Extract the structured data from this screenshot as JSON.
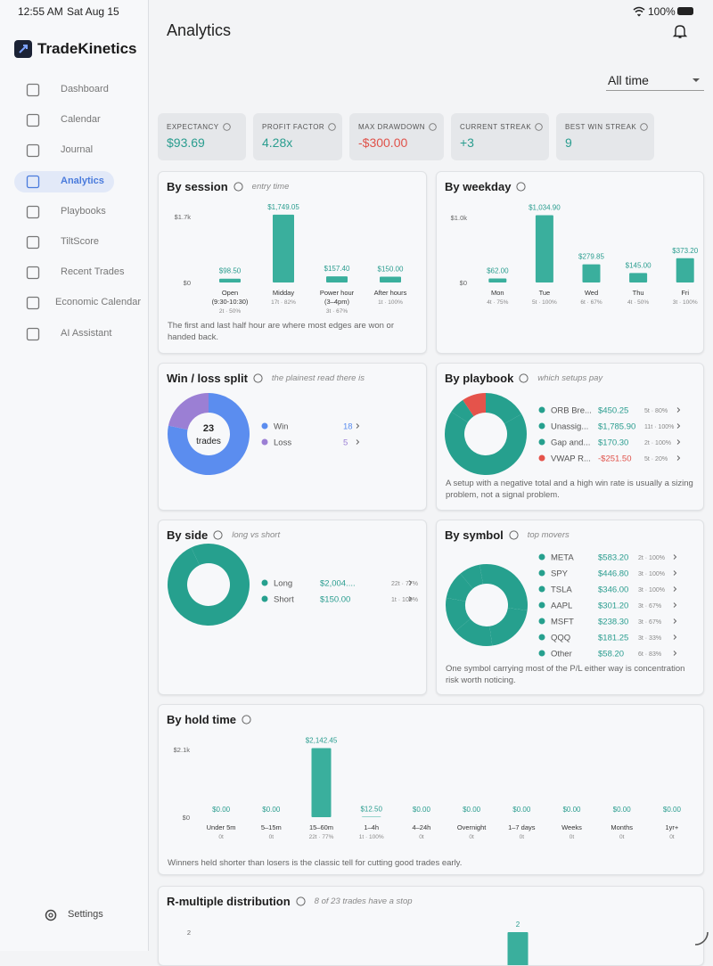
{
  "status_bar": {
    "time": "12:55 AM",
    "date": "Sat Aug 15",
    "battery": "100%"
  },
  "sidebar": {
    "brand": "TradeKinetics",
    "nav": [
      "Dashboard",
      "Calendar",
      "Journal",
      "Analytics",
      "Playbooks",
      "TiltScore",
      "Recent Trades",
      "Economic Calendar",
      "AI Assistant"
    ],
    "active": 3,
    "settings": "Settings"
  },
  "header": {
    "title": "Analytics",
    "range": "All time"
  },
  "stats": [
    {
      "label": "EXPECTANCY",
      "value": "$93.69",
      "color": "#2a9d8f"
    },
    {
      "label": "PROFIT FACTOR",
      "value": "4.28x",
      "color": "#2a9d8f"
    },
    {
      "label": "MAX DRAWDOWN",
      "value": "-$300.00",
      "color": "#e0524a"
    },
    {
      "label": "CURRENT STREAK",
      "value": "+3",
      "color": "#2a9d8f"
    },
    {
      "label": "BEST WIN STREAK",
      "value": "9",
      "color": "#2a9d8f"
    }
  ],
  "by_session": {
    "type": "bar",
    "title": "By session",
    "subtitle": "entry time",
    "ylim": [
      0,
      1700
    ],
    "yticks": [
      {
        "value": 0,
        "label": "$0"
      },
      {
        "value": 1700,
        "label": "$1.7k"
      }
    ],
    "categories": [
      [
        "Open",
        "(9:30-10:30)"
      ],
      [
        "Midday"
      ],
      [
        "Power hour",
        "(3–4pm)"
      ],
      [
        "After hours"
      ]
    ],
    "values": [
      98.5,
      1749.05,
      157.4,
      150
    ],
    "value_labels": [
      "$98.50",
      "$1,749.05",
      "$157.40",
      "$150.00"
    ],
    "meta": [
      "2t · 50%",
      "17t · 82%",
      "3t · 67%",
      "1t · 100%"
    ],
    "color": "#3aaf9d",
    "note": "The first and last half hour are where most edges are won or handed back."
  },
  "by_weekday": {
    "type": "bar",
    "title": "By weekday",
    "ylim": [
      0,
      1000
    ],
    "yticks": [
      {
        "value": 0,
        "label": "$0"
      },
      {
        "value": 1000,
        "label": "$1.0k"
      }
    ],
    "categories": [
      [
        "Mon"
      ],
      [
        "Tue"
      ],
      [
        "Wed"
      ],
      [
        "Thu"
      ],
      [
        "Fri"
      ]
    ],
    "values": [
      62,
      1034.9,
      279.85,
      145,
      373.2
    ],
    "value_labels": [
      "$62.00",
      "$1,034.90",
      "$279.85",
      "$145.00",
      "$373.20"
    ],
    "meta": [
      "4t · 75%",
      "5t · 100%",
      "6t · 67%",
      "4t · 50%",
      "3t · 100%"
    ],
    "color": "#3aaf9d"
  },
  "win_loss": {
    "type": "donut",
    "title": "Win / loss split",
    "subtitle": "the plainest read there is",
    "center_value": "23",
    "center_label": "trades",
    "series": [
      {
        "name": "Win",
        "value": 18,
        "color": "#5b8def"
      },
      {
        "name": "Loss",
        "value": 5,
        "color": "#9b7fd4"
      }
    ]
  },
  "by_playbook": {
    "type": "donut",
    "title": "By playbook",
    "subtitle": "which setups pay",
    "series": [
      {
        "name": "ORB Bre...",
        "value": 450.25,
        "value_label": "$450.25",
        "meta": "5t · 80%",
        "color": "#26a08e"
      },
      {
        "name": "Unassig...",
        "value": 1785.9,
        "value_label": "$1,785.90",
        "meta": "11t · 100%",
        "color": "#26a08e"
      },
      {
        "name": "Gap and...",
        "value": 170.3,
        "value_label": "$170.30",
        "meta": "2t · 100%",
        "color": "#26a08e"
      },
      {
        "name": "VWAP R...",
        "value": -251.5,
        "value_label": "-$251.50",
        "meta": "5t · 20%",
        "color": "#e5534b"
      }
    ],
    "note": "A setup with a negative total and a high win rate is usually a sizing problem, not a signal problem."
  },
  "by_side": {
    "type": "donut",
    "title": "By side",
    "subtitle": "long vs short",
    "series": [
      {
        "name": "Long",
        "value": 2004.95,
        "value_label": "$2,004....",
        "meta": "22t · 77%",
        "color": "#26a08e"
      },
      {
        "name": "Short",
        "value": 150,
        "value_label": "$150.00",
        "meta": "1t · 100%",
        "color": "#26a08e"
      }
    ]
  },
  "by_symbol": {
    "type": "donut",
    "title": "By symbol",
    "subtitle": "top movers",
    "series": [
      {
        "name": "META",
        "value": 583.2,
        "value_label": "$583.20",
        "meta": "2t · 100%",
        "color": "#26a08e"
      },
      {
        "name": "SPY",
        "value": 446.8,
        "value_label": "$446.80",
        "meta": "3t · 100%",
        "color": "#26a08e"
      },
      {
        "name": "TSLA",
        "value": 346,
        "value_label": "$346.00",
        "meta": "3t · 100%",
        "color": "#26a08e"
      },
      {
        "name": "AAPL",
        "value": 301.2,
        "value_label": "$301.20",
        "meta": "3t · 67%",
        "color": "#26a08e"
      },
      {
        "name": "MSFT",
        "value": 238.3,
        "value_label": "$238.30",
        "meta": "3t · 67%",
        "color": "#26a08e"
      },
      {
        "name": "QQQ",
        "value": 181.25,
        "value_label": "$181.25",
        "meta": "3t · 33%",
        "color": "#26a08e"
      },
      {
        "name": "Other",
        "value": 58.2,
        "value_label": "$58.20",
        "meta": "6t · 83%",
        "color": "#26a08e"
      }
    ],
    "note": "One symbol carrying most of the P/L either way is concentration risk worth noticing."
  },
  "by_hold_time": {
    "type": "bar",
    "title": "By hold time",
    "ylim": [
      0,
      2100
    ],
    "yticks": [
      {
        "value": 0,
        "label": "$0"
      },
      {
        "value": 2100,
        "label": "$2.1k"
      }
    ],
    "categories": [
      [
        "Under 5m"
      ],
      [
        "5–15m"
      ],
      [
        "15–60m"
      ],
      [
        "1–4h"
      ],
      [
        "4–24h"
      ],
      [
        "Overnight"
      ],
      [
        "1–7 days"
      ],
      [
        "Weeks"
      ],
      [
        "Months"
      ],
      [
        "1yr+"
      ]
    ],
    "values": [
      0,
      0,
      2142.45,
      12.5,
      0,
      0,
      0,
      0,
      0,
      0
    ],
    "value_labels": [
      "$0.00",
      "$0.00",
      "$2,142.45",
      "$12.50",
      "$0.00",
      "$0.00",
      "$0.00",
      "$0.00",
      "$0.00",
      "$0.00"
    ],
    "meta": [
      "0t",
      "0t",
      "22t · 77%",
      "1t · 100%",
      "0t",
      "0t",
      "0t",
      "0t",
      "0t",
      "0t"
    ],
    "color": "#3aaf9d",
    "note": "Winners held shorter than losers is the classic tell for cutting good trades early."
  },
  "r_multiple": {
    "type": "bar",
    "title": "R-multiple distribution",
    "subtitle": "8 of 23 trades have a stop",
    "ylim": [
      0,
      2
    ],
    "yticks": [
      2
    ],
    "values": [
      2
    ],
    "color": "#3aaf9d"
  }
}
